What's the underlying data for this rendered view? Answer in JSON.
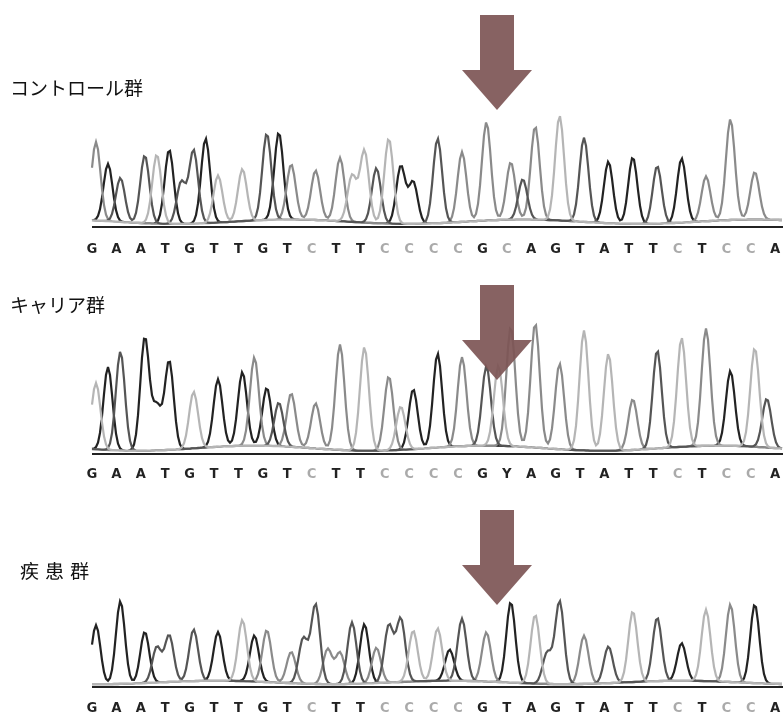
{
  "panels": [
    {
      "label": "コントロール群",
      "bases": [
        "G",
        "A",
        "A",
        "T",
        "G",
        "T",
        "T",
        "G",
        "T",
        "C",
        "T",
        "T",
        "C",
        "C",
        "C",
        "C",
        "G",
        "C",
        "A",
        "G",
        "T",
        "A",
        "T",
        "T",
        "C",
        "T",
        "C",
        "C",
        "A"
      ]
    },
    {
      "label": "キャリア群",
      "bases": [
        "G",
        "A",
        "A",
        "T",
        "G",
        "T",
        "T",
        "G",
        "T",
        "C",
        "T",
        "T",
        "C",
        "C",
        "C",
        "C",
        "G",
        "Y",
        "A",
        "G",
        "T",
        "A",
        "T",
        "T",
        "C",
        "T",
        "C",
        "C",
        "A"
      ]
    },
    {
      "label": "疾 患 群",
      "bases": [
        "G",
        "A",
        "A",
        "T",
        "G",
        "T",
        "T",
        "G",
        "T",
        "C",
        "T",
        "T",
        "C",
        "C",
        "C",
        "C",
        "G",
        "T",
        "A",
        "G",
        "T",
        "A",
        "T",
        "T",
        "C",
        "T",
        "C",
        "C",
        "A"
      ]
    }
  ]
}
